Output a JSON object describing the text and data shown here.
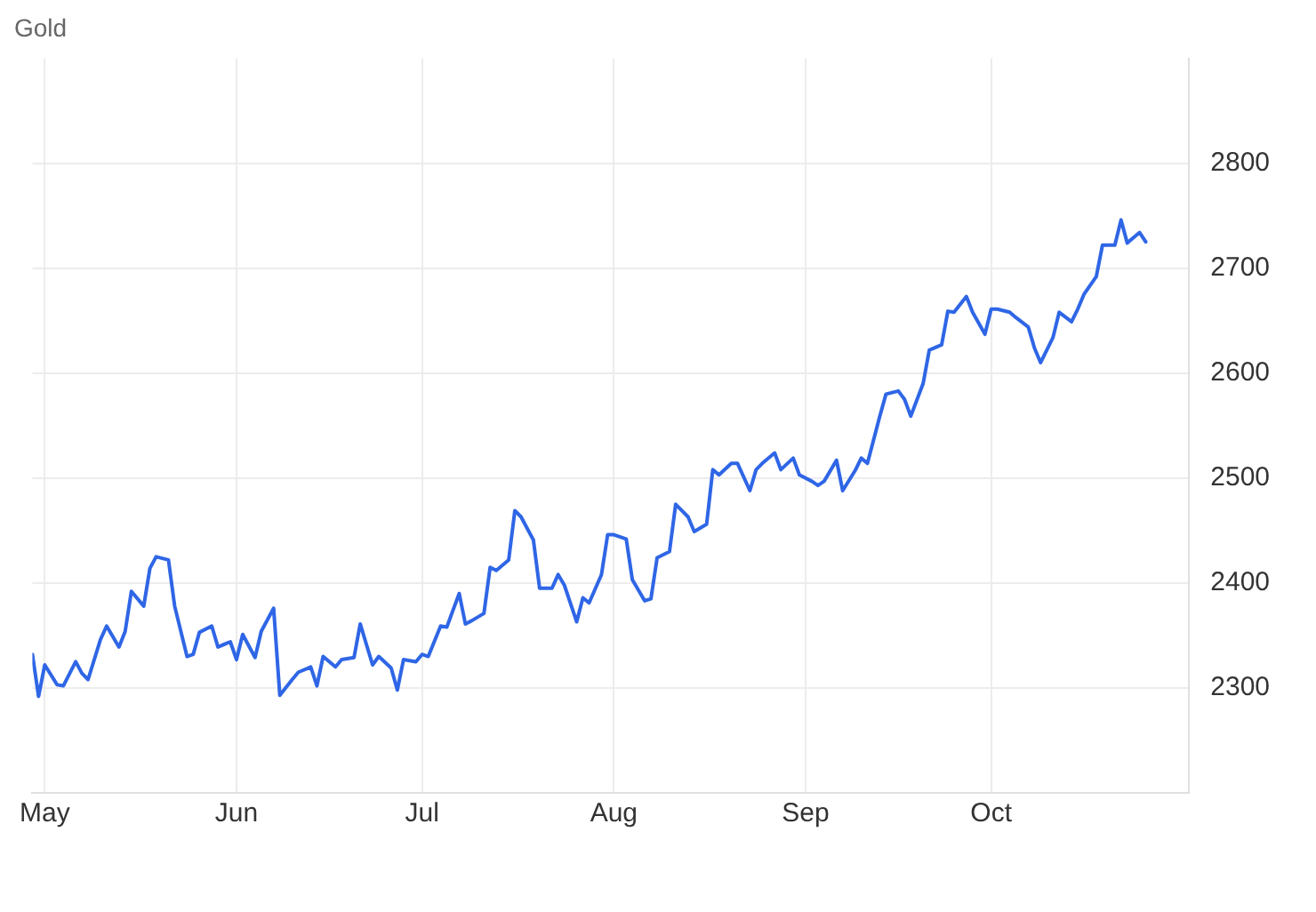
{
  "chart_data": {
    "type": "line",
    "title": "Gold",
    "x": [
      "--04-29",
      "--04-30",
      "--05-01",
      "--05-03",
      "--05-04",
      "--05-06",
      "--05-07",
      "--05-08",
      "--05-10",
      "--05-11",
      "--05-13",
      "--05-14",
      "--05-15",
      "--05-17",
      "--05-18",
      "--05-19",
      "--05-21",
      "--05-22",
      "--05-24",
      "--05-25",
      "--05-26",
      "--05-28",
      "--05-29",
      "--05-31",
      "--06-01",
      "--06-02",
      "--06-04",
      "--06-05",
      "--06-07",
      "--06-08",
      "--06-10",
      "--06-11",
      "--06-13",
      "--06-14",
      "--06-15",
      "--06-17",
      "--06-18",
      "--06-20",
      "--06-21",
      "--06-23",
      "--06-24",
      "--06-26",
      "--06-27",
      "--06-28",
      "--06-30",
      "--07-01",
      "--07-02",
      "--07-04",
      "--07-05",
      "--07-07",
      "--07-08",
      "--07-09",
      "--07-11",
      "--07-12",
      "--07-13",
      "--07-15",
      "--07-16",
      "--07-17",
      "--07-19",
      "--07-20",
      "--07-22",
      "--07-23",
      "--07-24",
      "--07-26",
      "--07-27",
      "--07-28",
      "--07-30",
      "--07-31",
      "--08-01",
      "--08-03",
      "--08-04",
      "--08-06",
      "--08-07",
      "--08-08",
      "--08-10",
      "--08-11",
      "--08-13",
      "--08-14",
      "--08-16",
      "--08-17",
      "--08-18",
      "--08-20",
      "--08-21",
      "--08-23",
      "--08-24",
      "--08-25",
      "--08-27",
      "--08-28",
      "--08-30",
      "--08-31",
      "--09-02",
      "--09-03",
      "--09-04",
      "--09-06",
      "--09-07",
      "--09-09",
      "--09-10",
      "--09-11",
      "--09-13",
      "--09-14",
      "--09-16",
      "--09-17",
      "--09-18",
      "--09-20",
      "--09-21",
      "--09-23",
      "--09-24",
      "--09-25",
      "--09-27",
      "--09-28",
      "--09-30",
      "--10-01",
      "--10-02",
      "--10-04",
      "--10-05",
      "--10-07",
      "--10-08",
      "--10-09",
      "--10-11",
      "--10-12",
      "--10-14",
      "--10-15",
      "--10-16",
      "--10-18",
      "--10-19",
      "--10-21",
      "--10-22",
      "--10-23",
      "--10-25",
      "--10-26"
    ],
    "series": [
      {
        "color": "#2f66e6",
        "values": [
          2332,
          2292,
          2322,
          2303,
          2302,
          2325,
          2314,
          2308,
          2346,
          2359,
          2339,
          2354,
          2392,
          2378,
          2414,
          2425,
          2422,
          2378,
          2330,
          2332,
          2353,
          2359,
          2339,
          2344,
          2327,
          2351,
          2329,
          2354,
          2376,
          2293,
          2308,
          2315,
          2320,
          2302,
          2330,
          2320,
          2327,
          2329,
          2361,
          2322,
          2330,
          2319,
          2298,
          2327,
          2325,
          2332,
          2330,
          2359,
          2358,
          2390,
          2361,
          2364,
          2371,
          2415,
          2412,
          2422,
          2469,
          2463,
          2441,
          2395,
          2395,
          2408,
          2398,
          2363,
          2386,
          2381,
          2408,
          2446,
          2446,
          2442,
          2403,
          2383,
          2385,
          2424,
          2430,
          2475,
          2463,
          2449,
          2456,
          2508,
          2503,
          2514,
          2514,
          2488,
          2508,
          2514,
          2524,
          2508,
          2519,
          2503,
          2497,
          2493,
          2497,
          2517,
          2488,
          2507,
          2519,
          2514,
          2559,
          2580,
          2583,
          2575,
          2559,
          2590,
          2622,
          2627,
          2659,
          2658,
          2673,
          2658,
          2637,
          2661,
          2661,
          2658,
          2653,
          2644,
          2624,
          2610,
          2634,
          2658,
          2649,
          2661,
          2675,
          2692,
          2722,
          2722,
          2746,
          2724,
          2734,
          2725
        ]
      }
    ],
    "xlim": [
      "--04-29",
      "--11-02"
    ],
    "xticks": [
      {
        "value": "--05-01",
        "label": "May"
      },
      {
        "value": "--06-01",
        "label": "Jun"
      },
      {
        "value": "--07-01",
        "label": "Jul"
      },
      {
        "value": "--08-01",
        "label": "Aug"
      },
      {
        "value": "--09-01",
        "label": "Sep"
      },
      {
        "value": "--10-01",
        "label": "Oct"
      }
    ],
    "ylim": [
      2200,
      2900
    ],
    "yticks": [
      2300,
      2400,
      2500,
      2600,
      2700,
      2800
    ],
    "grid": true,
    "marker": "none",
    "line_style": "solid"
  }
}
